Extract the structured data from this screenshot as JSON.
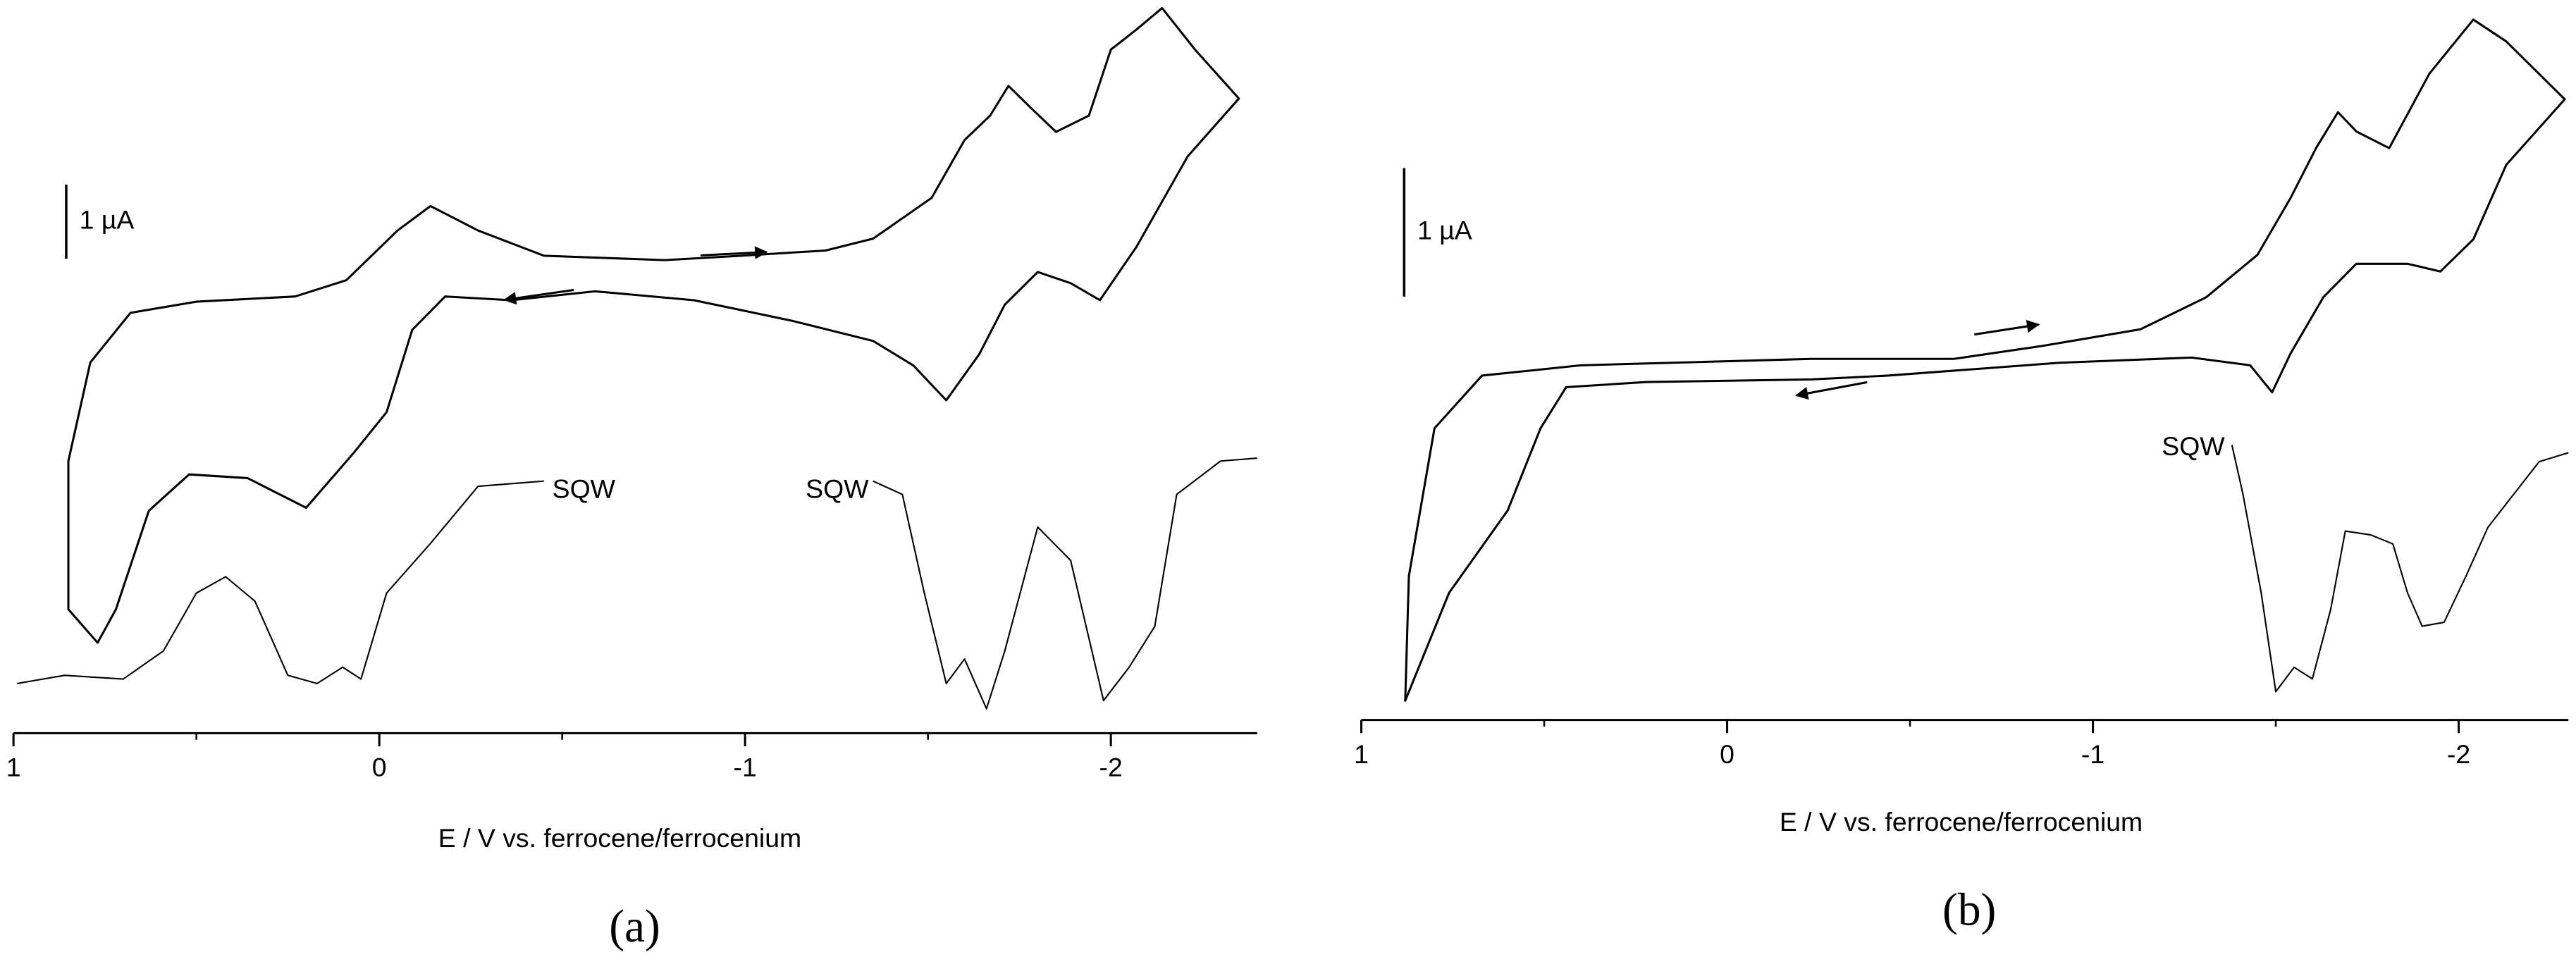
{
  "chart_data": [
    {
      "type": "line",
      "panel_label": "(a)",
      "xlabel": "E / V vs. ferrocene/ferrocenium",
      "xlim": [
        1,
        -2.4
      ],
      "xticks": [
        1,
        0,
        -1,
        -2
      ],
      "minor_xticks": [
        0.5,
        -0.5,
        -1.5
      ],
      "scale_bar": {
        "value": 1,
        "label": "1 µA"
      },
      "color": "#000000",
      "series": [
        {
          "x": [
            -0.78,
            -0.99,
            -1.22,
            -1.35,
            -1.51,
            -1.6,
            -1.67,
            -1.72,
            -1.78,
            -1.85,
            -1.94,
            -2.0,
            -2.07,
            -2.14,
            -2.23,
            -2.35,
            -2.21,
            -2.07,
            -1.97,
            -1.89,
            -1.8,
            -1.71,
            -1.64,
            -1.55,
            -1.46,
            -1.35,
            -1.13,
            -0.86,
            -0.59,
            -0.36,
            -0.18,
            -0.09,
            -0.02,
            0.07,
            0.2,
            0.36,
            0.52,
            0.63,
            0.72,
            0.77,
            0.85,
            0.85,
            0.79,
            0.68,
            0.5,
            0.23,
            0.09,
            -0.05,
            -0.14,
            -0.27,
            -0.45,
            -0.78
          ],
          "values": [
            6.38,
            6.44,
            6.51,
            6.67,
            7.22,
            8.0,
            8.33,
            8.73,
            8.44,
            8.11,
            8.33,
            9.22,
            9.49,
            9.78,
            9.22,
            8.56,
            7.78,
            6.56,
            5.84,
            6.07,
            6.22,
            5.78,
            5.11,
            4.49,
            4.96,
            5.29,
            5.56,
            5.84,
            5.96,
            5.84,
            5.89,
            5.44,
            4.33,
            3.78,
            3.04,
            3.44,
            3.49,
            3.0,
            1.67,
            1.22,
            1.67,
            3.67,
            5.0,
            5.67,
            5.82,
            5.89,
            6.11,
            6.78,
            7.11,
            6.78,
            6.44,
            6.38
          ]
        },
        {
          "name": "SQW",
          "x": [
            0.99,
            0.86,
            0.7,
            0.59,
            0.5,
            0.42,
            0.34,
            0.25,
            0.17,
            0.1,
            0.05,
            -0.02,
            -0.14,
            -0.27,
            -0.45
          ],
          "values": [
            0.67,
            0.78,
            0.73,
            1.11,
            1.89,
            2.11,
            1.78,
            0.78,
            0.67,
            0.89,
            0.73,
            1.89,
            2.56,
            3.33,
            3.4
          ]
        },
        {
          "name": "SQW",
          "x": [
            -1.35,
            -1.43,
            -1.49,
            -1.55,
            -1.6,
            -1.66,
            -1.71,
            -1.8,
            -1.89,
            -1.98,
            -2.05,
            -2.12,
            -2.18,
            -2.3,
            -2.4
          ],
          "values": [
            3.4,
            3.22,
            1.89,
            0.67,
            1.0,
            0.33,
            1.11,
            2.78,
            2.33,
            0.44,
            0.89,
            1.44,
            3.22,
            3.67,
            3.71
          ]
        }
      ]
    },
    {
      "type": "line",
      "panel_label": "(b)",
      "xlabel": "E / V vs. ferrocene/ferrocenium",
      "xlim": [
        1,
        -2.3
      ],
      "xticks": [
        1,
        0,
        -1,
        -2
      ],
      "minor_xticks": [
        0.5,
        -0.5,
        -1.5
      ],
      "scale_bar": {
        "value": 1,
        "label": "1 µA"
      },
      "color": "#000000",
      "series": [
        {
          "x": [
            -0.62,
            -0.86,
            -1.13,
            -1.31,
            -1.45,
            -1.54,
            -1.61,
            -1.67,
            -1.72,
            -1.81,
            -1.92,
            -2.04,
            -2.13,
            -2.29,
            -2.13,
            -2.04,
            -1.95,
            -1.86,
            -1.72,
            -1.63,
            -1.54,
            -1.49,
            -1.43,
            -1.27,
            -0.91,
            -0.44,
            -0.23,
            0.22,
            0.44,
            0.51,
            0.6,
            0.76,
            0.88,
            0.87,
            0.8,
            0.67,
            0.4,
            -0.23,
            -0.62
          ],
          "values": [
            2.81,
            2.91,
            3.04,
            3.29,
            3.62,
            4.06,
            4.45,
            4.73,
            4.58,
            4.45,
            5.03,
            5.45,
            5.28,
            4.83,
            4.32,
            3.74,
            3.49,
            3.55,
            3.55,
            3.29,
            2.85,
            2.55,
            2.76,
            2.82,
            2.78,
            2.68,
            2.65,
            2.63,
            2.59,
            2.27,
            1.63,
            0.99,
            0.15,
            1.12,
            2.27,
            2.68,
            2.76,
            2.81,
            2.81
          ]
        },
        {
          "name": "SQW",
          "x": [
            -1.38,
            -1.41,
            -1.46,
            -1.5,
            -1.55,
            -1.6,
            -1.65,
            -1.69,
            -1.76,
            -1.82,
            -1.86,
            -1.9,
            -1.96,
            -2.02,
            -2.08,
            -2.22,
            -2.3
          ],
          "values": [
            2.14,
            1.76,
            0.99,
            0.22,
            0.41,
            0.32,
            0.86,
            1.47,
            1.44,
            1.37,
            0.99,
            0.73,
            0.76,
            1.12,
            1.5,
            2.01,
            2.08
          ]
        }
      ]
    }
  ]
}
